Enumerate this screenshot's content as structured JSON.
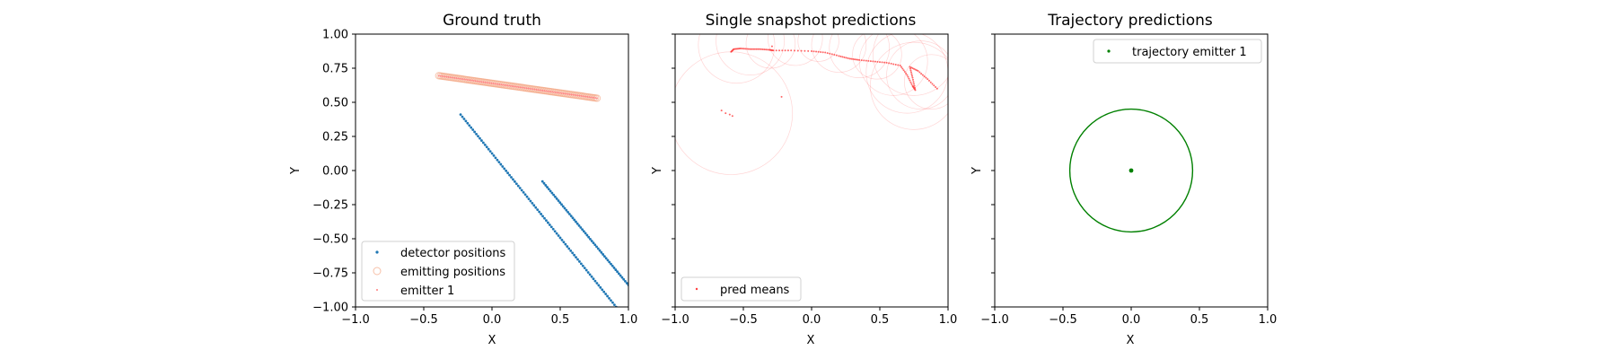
{
  "chart_data": [
    {
      "type": "scatter",
      "title": "Ground truth",
      "xlabel": "X",
      "ylabel": "Y",
      "xlim": [
        -1.0,
        1.0
      ],
      "ylim": [
        -1.0,
        1.0
      ],
      "xticks": [
        "−1.0",
        "−0.5",
        "0.0",
        "0.5",
        "1.0"
      ],
      "yticks": [
        "−1.00",
        "−0.75",
        "−0.50",
        "−0.25",
        "0.00",
        "0.25",
        "0.50",
        "0.75",
        "1.00"
      ],
      "legend": {
        "placement": "lower-left",
        "entries": [
          "detector positions",
          "emitting positions",
          "emitter 1"
        ]
      },
      "grid": false,
      "series": [
        {
          "name": "detector positions",
          "color": "#1f77b4",
          "marker": "dot",
          "segments": [
            {
              "from": [
                -0.23,
                0.41
              ],
              "to": [
                0.91,
                -1.0
              ],
              "n": 90
            },
            {
              "from": [
                0.37,
                -0.08
              ],
              "to": [
                1.0,
                -0.84
              ],
              "n": 55
            }
          ]
        },
        {
          "name": "emitting positions",
          "color": "#f4a582",
          "marker": "open-circle",
          "segments": [
            {
              "from": [
                -0.39,
                0.695
              ],
              "to": [
                0.77,
                0.53
              ],
              "n": 100
            }
          ]
        },
        {
          "name": "emitter 1",
          "color": "#ff7f7f",
          "marker": "small-dot",
          "segments": [
            {
              "from": [
                -0.39,
                0.695
              ],
              "to": [
                0.77,
                0.53
              ],
              "n": 100
            }
          ]
        }
      ]
    },
    {
      "type": "scatter",
      "title": "Single snapshot predictions",
      "xlabel": "X",
      "ylabel": "Y",
      "xlim": [
        -1.0,
        1.0
      ],
      "ylim": [
        -1.0,
        1.0
      ],
      "xticks": [
        "−1.0",
        "−0.5",
        "0.0",
        "0.5",
        "1.0"
      ],
      "legend": {
        "placement": "lower-left",
        "entries": [
          "pred means"
        ]
      },
      "grid": false,
      "series": [
        {
          "name": "pred means",
          "color": "#ff4040",
          "marker": "small-dot",
          "polyline": [
            [
              -0.59,
              0.87
            ],
            [
              -0.57,
              0.89
            ],
            [
              -0.52,
              0.895
            ],
            [
              -0.45,
              0.89
            ],
            [
              -0.38,
              0.89
            ],
            [
              -0.31,
              0.885
            ],
            [
              -0.28,
              0.88
            ],
            [
              -0.15,
              0.88
            ],
            [
              0.0,
              0.875
            ],
            [
              0.1,
              0.865
            ],
            [
              0.2,
              0.84
            ],
            [
              0.28,
              0.82
            ],
            [
              0.35,
              0.81
            ],
            [
              0.45,
              0.8
            ],
            [
              0.55,
              0.79
            ],
            [
              0.65,
              0.77
            ],
            [
              0.7,
              0.7
            ],
            [
              0.74,
              0.62
            ],
            [
              0.76,
              0.59
            ],
            [
              0.74,
              0.68
            ],
            [
              0.72,
              0.76
            ],
            [
              0.78,
              0.73
            ],
            [
              0.85,
              0.67
            ],
            [
              0.92,
              0.6
            ]
          ],
          "isolated": [
            [
              -0.66,
              0.44
            ],
            [
              -0.63,
              0.42
            ],
            [
              -0.6,
              0.41
            ],
            [
              -0.58,
              0.4
            ],
            [
              -0.22,
              0.54
            ],
            [
              -0.29,
              0.91
            ]
          ],
          "uncertainty_circles": [
            {
              "center": [
                -0.59,
                0.42
              ],
              "r": 0.45
            },
            {
              "center": [
                -0.55,
                0.92
              ],
              "r": 0.28
            },
            {
              "center": [
                -0.45,
                0.95
              ],
              "r": 0.25
            },
            {
              "center": [
                -0.3,
                0.93
              ],
              "r": 0.18
            },
            {
              "center": [
                -0.12,
                0.97
              ],
              "r": 0.2
            },
            {
              "center": [
                0.05,
                0.95
              ],
              "r": 0.15
            },
            {
              "center": [
                0.2,
                0.92
              ],
              "r": 0.2
            },
            {
              "center": [
                0.35,
                0.9
              ],
              "r": 0.22
            },
            {
              "center": [
                0.48,
                0.85
              ],
              "r": 0.18
            },
            {
              "center": [
                0.6,
                0.8
              ],
              "r": 0.25
            },
            {
              "center": [
                0.7,
                0.72
              ],
              "r": 0.3
            },
            {
              "center": [
                0.75,
                0.62
              ],
              "r": 0.32
            },
            {
              "center": [
                0.8,
                0.7
              ],
              "r": 0.25
            },
            {
              "center": [
                0.88,
                0.65
              ],
              "r": 0.2
            },
            {
              "center": [
                0.75,
                0.85
              ],
              "r": 0.3
            }
          ]
        }
      ]
    },
    {
      "type": "scatter",
      "title": "Trajectory predictions",
      "xlabel": "X",
      "ylabel": "Y",
      "xlim": [
        -1.0,
        1.0
      ],
      "ylim": [
        -1.0,
        1.0
      ],
      "xticks": [
        "−1.0",
        "−0.5",
        "0.0",
        "0.5",
        "1.0"
      ],
      "legend": {
        "placement": "upper-right",
        "entries": [
          "trajectory emitter 1"
        ]
      },
      "grid": false,
      "series": [
        {
          "name": "trajectory emitter 1",
          "color": "#008000",
          "marker": "dot",
          "points": [
            [
              0.0,
              0.0
            ]
          ],
          "uncertainty_circles": [
            {
              "center": [
                0.0,
                0.0
              ],
              "r": 0.45
            }
          ]
        }
      ]
    }
  ]
}
